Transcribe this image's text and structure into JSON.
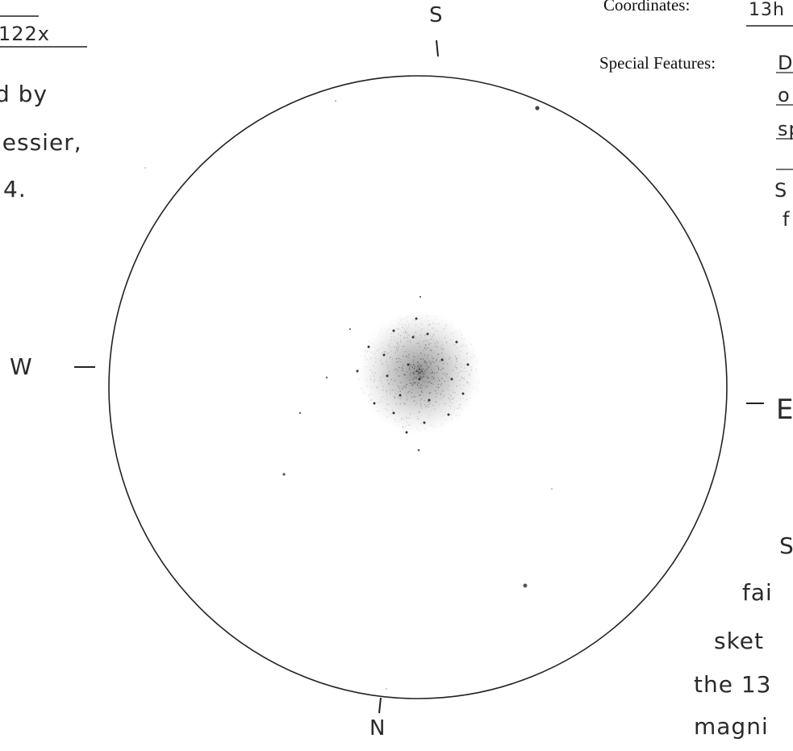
{
  "left_margin": {
    "magnification": "122x",
    "lines": [
      "d by",
      "lessier,",
      "4."
    ]
  },
  "form": {
    "coordinates_label": "Coordinates:",
    "coordinates_value": "13h",
    "special_features_label": "Special Features:",
    "special_features_lines": [
      "D",
      "o",
      "sp",
      "S",
      "f"
    ]
  },
  "directions": {
    "south": "S",
    "north": "N",
    "west": "W",
    "east": "E"
  },
  "right_notes": [
    "S",
    "fai",
    "sket",
    "the 13",
    "magni"
  ]
}
